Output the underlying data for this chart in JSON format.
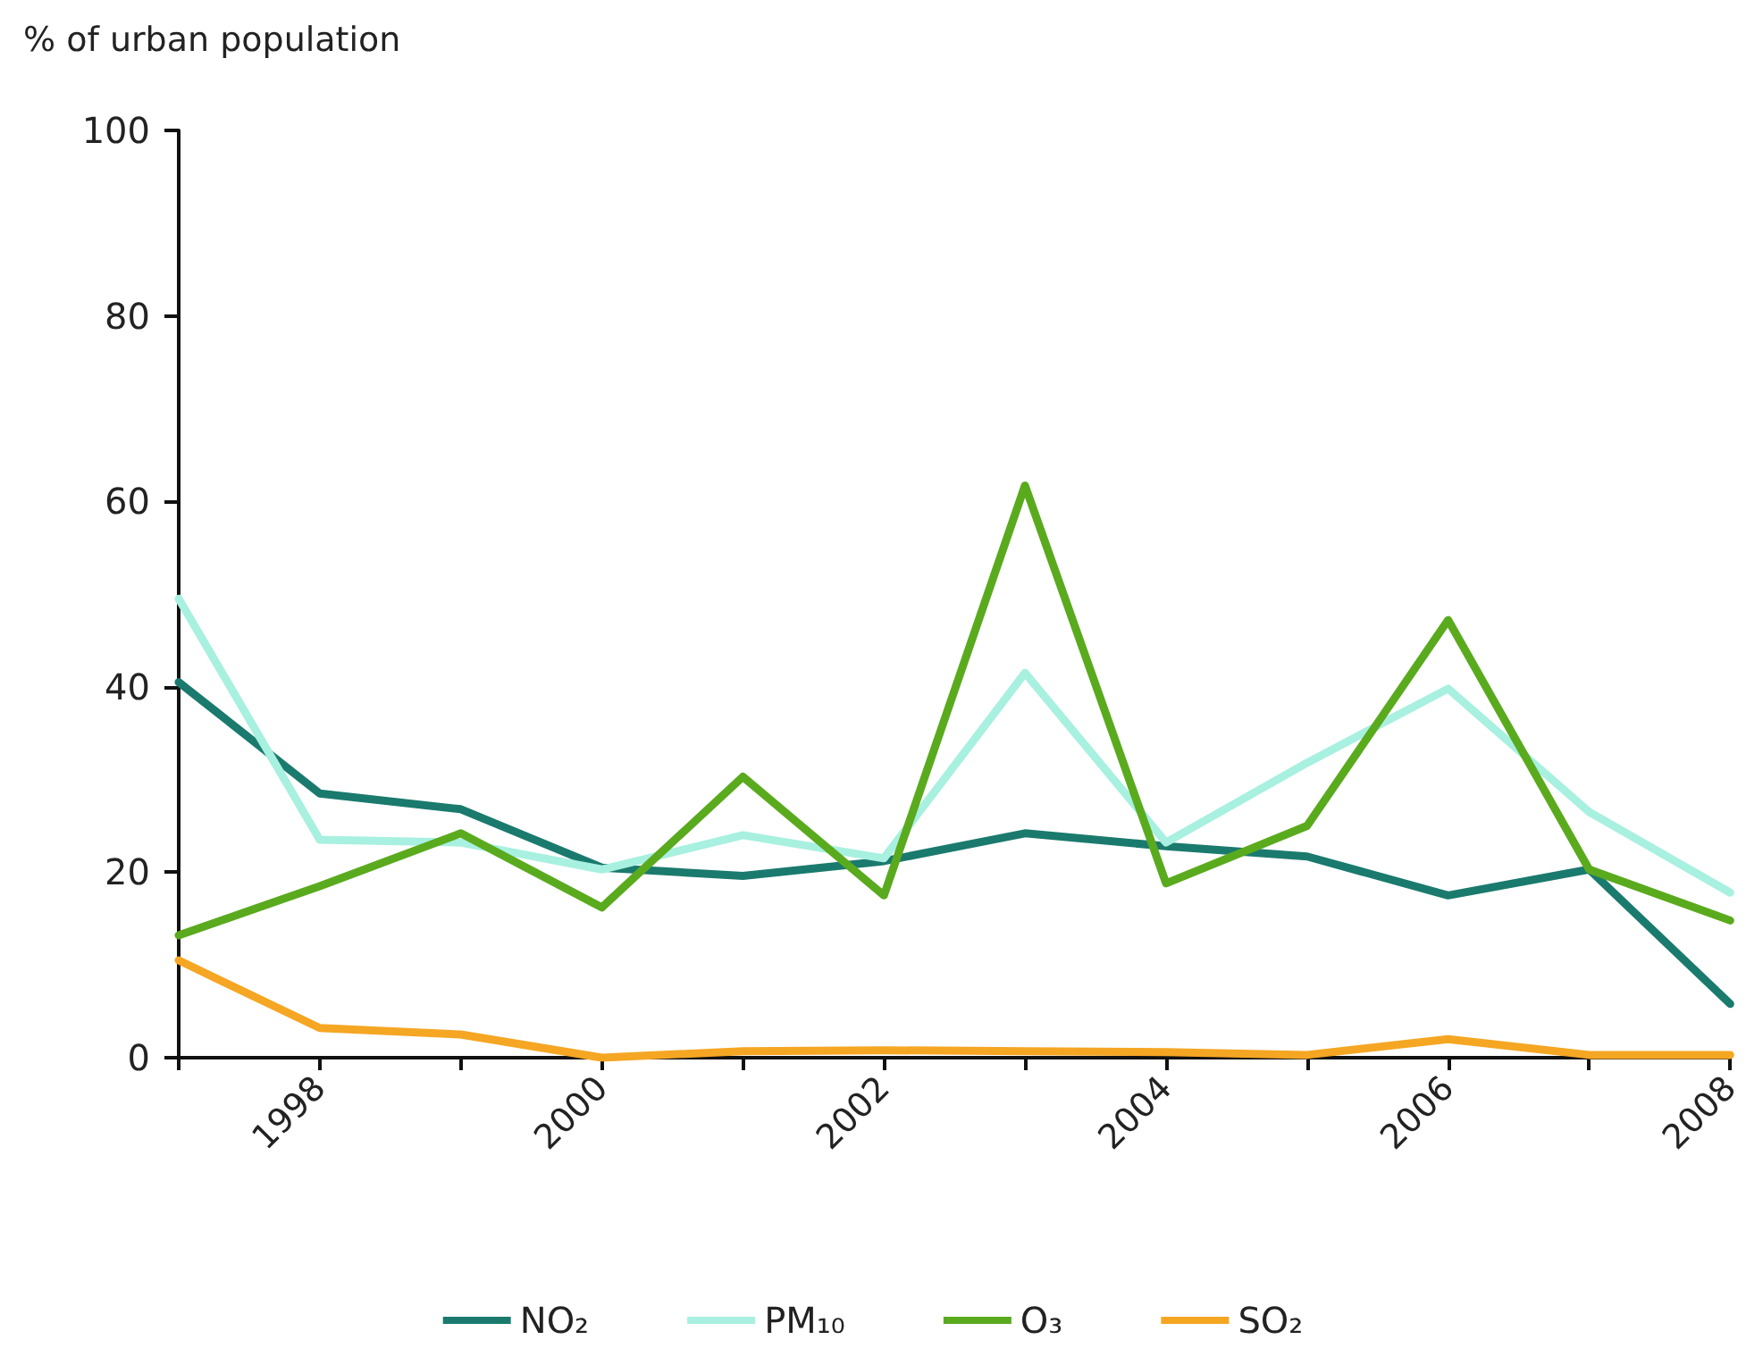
{
  "chart_data": {
    "type": "line",
    "ylabel": "% of urban population",
    "x": [
      1997,
      1998,
      1999,
      2000,
      2001,
      2002,
      2003,
      2004,
      2005,
      2006,
      2007,
      2008
    ],
    "series": [
      {
        "name": "NO₂",
        "color": "#1a7a6e",
        "values": [
          40.5,
          28.5,
          26.8,
          20.5,
          19.6,
          21.2,
          24.2,
          22.8,
          21.7,
          17.5,
          20.3,
          5.8
        ]
      },
      {
        "name": "PM₁₀",
        "color": "#a8f0e0",
        "values": [
          49.5,
          23.5,
          23.2,
          20.3,
          24.0,
          21.5,
          41.5,
          23.2,
          31.8,
          39.8,
          26.5,
          17.8
        ]
      },
      {
        "name": "O₃",
        "color": "#5aaa1e",
        "values": [
          13.2,
          18.5,
          24.2,
          16.2,
          30.3,
          17.5,
          61.7,
          18.8,
          25.0,
          47.2,
          20.3,
          14.8
        ]
      },
      {
        "name": "SO₂",
        "color": "#f5a623",
        "values": [
          10.5,
          3.2,
          2.5,
          0,
          0.7,
          0.8,
          0.7,
          0.6,
          0.3,
          2.0,
          0.3,
          0.3
        ]
      }
    ],
    "xlim": [
      1997,
      2008
    ],
    "xticks": [
      {
        "value": 1997,
        "label": null
      },
      1998,
      {
        "value": 1999,
        "label": null
      },
      2000,
      {
        "value": 2001,
        "label": null
      },
      2002,
      {
        "value": 2003,
        "label": null
      },
      2004,
      {
        "value": 2005,
        "label": null
      },
      2006,
      {
        "value": 2007,
        "label": null
      },
      2008
    ],
    "ylim": [
      0,
      100
    ],
    "yticks": [
      0,
      20,
      40,
      60,
      80,
      100
    ],
    "grid": false,
    "legend": "bottom",
    "marker": "none",
    "line_style": "solid"
  }
}
